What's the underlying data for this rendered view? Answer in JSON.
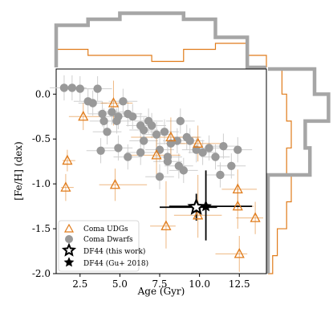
{
  "chart_data": {
    "type": "scatter",
    "xlabel": "Age (Gyr)",
    "ylabel": "[Fe/H] (dex)",
    "xlim": [
      1.0,
      14.2
    ],
    "ylim": [
      -2.0,
      0.28
    ],
    "xticks": [
      "2.5",
      "5.0",
      "7.5",
      "10.0",
      "12.5"
    ],
    "yticks": [
      "0.0",
      "-0.5",
      "-1.0",
      "-1.5",
      "-2.0"
    ],
    "grid": false,
    "legend_position": "lower-left",
    "colors": {
      "udg": "#e07b1a",
      "dwarf": "#999999",
      "df44": "#000000",
      "hist_dwarf": "#a6a6a6"
    },
    "series": [
      {
        "name": "Coma UDGs",
        "marker": "open-triangle",
        "points": [
          {
            "x": 2.7,
            "y": -0.25,
            "xerr": [
              0.9,
              1.2
            ],
            "yerr": [
              0.15,
              0.15
            ]
          },
          {
            "x": 1.7,
            "y": -0.74,
            "xerr": [
              0.3,
              0.5
            ],
            "yerr": [
              0.12,
              0.12
            ]
          },
          {
            "x": 1.6,
            "y": -1.04,
            "xerr": [
              0.3,
              0.5
            ],
            "yerr": [
              0.15,
              0.15
            ]
          },
          {
            "x": 4.6,
            "y": -0.1,
            "xerr": [
              0.8,
              1.2
            ],
            "yerr": [
              0.25,
              0.25
            ]
          },
          {
            "x": 4.7,
            "y": -1.01,
            "xerr": [
              1.0,
              2.0
            ],
            "yerr": [
              0.18,
              0.18
            ]
          },
          {
            "x": 8.2,
            "y": -0.48,
            "xerr": [
              2.5,
              1.8
            ],
            "yerr": [
              0.22,
              0.22
            ]
          },
          {
            "x": 7.3,
            "y": -0.68,
            "xerr": [
              2.0,
              1.5
            ],
            "yerr": [
              0.25,
              0.25
            ]
          },
          {
            "x": 7.9,
            "y": -1.47,
            "xerr": [
              1.0,
              0.6
            ],
            "yerr": [
              0.25,
              0.5
            ]
          },
          {
            "x": 9.9,
            "y": -0.55,
            "xerr": [
              2.0,
              1.5
            ],
            "yerr": [
              0.2,
              0.2
            ]
          },
          {
            "x": 9.9,
            "y": -1.35,
            "xerr": [
              1.5,
              1.5
            ],
            "yerr": [
              0.25,
              0.45
            ]
          },
          {
            "x": 12.4,
            "y": -1.06,
            "xerr": [
              1.0,
              1.2
            ],
            "yerr": [
              0.22,
              0.22
            ]
          },
          {
            "x": 12.4,
            "y": -1.25,
            "xerr": [
              1.0,
              1.0
            ],
            "yerr": [
              0.25,
              0.25
            ]
          },
          {
            "x": 12.5,
            "y": -1.78,
            "xerr": [
              1.5,
              0.5
            ],
            "yerr": [
              0.2,
              0.2
            ]
          },
          {
            "x": 13.5,
            "y": -1.38,
            "xerr": [
              1.2,
              0.5
            ],
            "yerr": [
              0.18,
              0.18
            ]
          }
        ]
      },
      {
        "name": "Coma Dwarfs",
        "marker": "filled-circle",
        "points": [
          {
            "x": 1.5,
            "y": 0.07
          },
          {
            "x": 2.0,
            "y": 0.07
          },
          {
            "x": 2.5,
            "y": 0.06
          },
          {
            "x": 3.0,
            "y": -0.08
          },
          {
            "x": 3.6,
            "y": 0.06
          },
          {
            "x": 3.3,
            "y": -0.1
          },
          {
            "x": 4.5,
            "y": -0.2
          },
          {
            "x": 4.9,
            "y": -0.25
          },
          {
            "x": 5.2,
            "y": -0.08
          },
          {
            "x": 3.9,
            "y": -0.22
          },
          {
            "x": 4.0,
            "y": -0.3
          },
          {
            "x": 4.2,
            "y": -0.42
          },
          {
            "x": 4.8,
            "y": -0.3
          },
          {
            "x": 5.5,
            "y": -0.22
          },
          {
            "x": 5.8,
            "y": -0.25
          },
          {
            "x": 6.3,
            "y": -0.35
          },
          {
            "x": 6.5,
            "y": -0.4
          },
          {
            "x": 6.8,
            "y": -0.3
          },
          {
            "x": 7.0,
            "y": -0.35
          },
          {
            "x": 7.3,
            "y": -0.45
          },
          {
            "x": 7.8,
            "y": -0.42
          },
          {
            "x": 8.2,
            "y": -0.55
          },
          {
            "x": 8.8,
            "y": -0.3
          },
          {
            "x": 8.6,
            "y": -0.52
          },
          {
            "x": 8.7,
            "y": -0.8
          },
          {
            "x": 9.2,
            "y": -0.48
          },
          {
            "x": 9.4,
            "y": -0.52
          },
          {
            "x": 9.8,
            "y": -0.62
          },
          {
            "x": 10.2,
            "y": -0.65
          },
          {
            "x": 10.6,
            "y": -0.6
          },
          {
            "x": 11.0,
            "y": -0.7
          },
          {
            "x": 11.5,
            "y": -0.58
          },
          {
            "x": 12.0,
            "y": -0.8
          },
          {
            "x": 12.4,
            "y": -0.62
          },
          {
            "x": 11.3,
            "y": -0.9
          },
          {
            "x": 8.0,
            "y": -0.75
          },
          {
            "x": 7.5,
            "y": -0.92
          },
          {
            "x": 6.5,
            "y": -0.52
          },
          {
            "x": 6.3,
            "y": -0.65
          },
          {
            "x": 5.5,
            "y": -0.7
          },
          {
            "x": 3.8,
            "y": -0.63
          },
          {
            "x": 4.9,
            "y": -0.6
          },
          {
            "x": 7.5,
            "y": -0.62
          },
          {
            "x": 8.0,
            "y": -0.7
          },
          {
            "x": 9.0,
            "y": -0.85
          }
        ]
      },
      {
        "name": "DF44 (this work)",
        "marker": "open-star",
        "points": [
          {
            "x": 9.8,
            "y": -1.26,
            "xerr": [
              2.3,
              1.3
            ],
            "yerr": [
              0.15,
              0.15
            ]
          }
        ]
      },
      {
        "name": "DF44 (Gu+ 2018)",
        "marker": "filled-star",
        "points": [
          {
            "x": 10.4,
            "y": -1.25,
            "xerr": [
              2.3,
              2.9
            ],
            "yerr": [
              0.38,
              0.4
            ]
          }
        ]
      }
    ],
    "histograms": {
      "top_age_bins": [
        1.0,
        3.0,
        5.0,
        7.0,
        9.0,
        11.0,
        13.0,
        14.2
      ],
      "top_dwarf_counts": [
        7,
        8,
        9,
        9,
        8,
        5,
        0
      ],
      "top_udg_counts": [
        3,
        2,
        2,
        1,
        3,
        4,
        2
      ],
      "right_feh_bins": [
        0.28,
        0.0,
        -0.3,
        -0.6,
        -0.9,
        -1.2,
        -1.5,
        -1.8,
        -2.0
      ],
      "right_dwarf_counts": [
        10,
        13,
        8,
        9,
        0,
        0,
        0,
        0
      ],
      "right_udg_counts": [
        3,
        4,
        5,
        4,
        5,
        4,
        2,
        1
      ]
    }
  },
  "legend": {
    "udg": "Coma UDGs",
    "dwarf": "Coma Dwarfs",
    "df44_this": "DF44 (this work)",
    "df44_gu": "DF44 (Gu+ 2018)"
  }
}
